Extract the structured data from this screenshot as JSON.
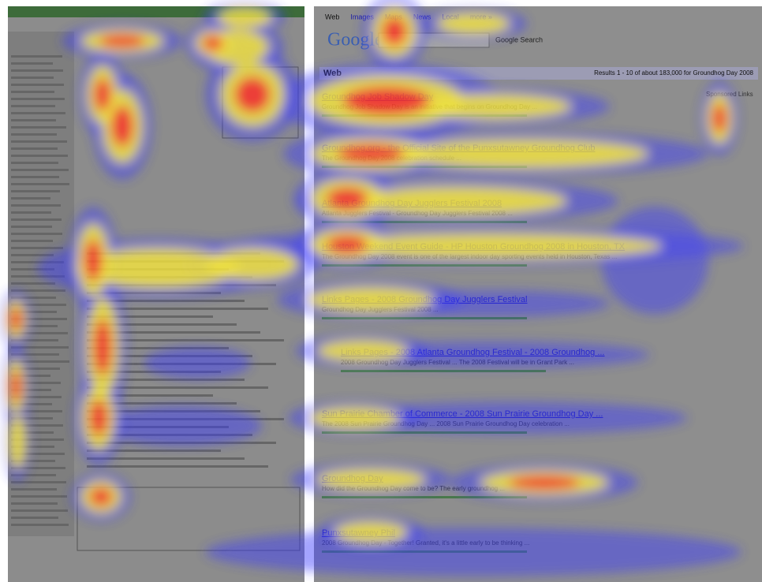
{
  "right_page": {
    "tabs": [
      "Web",
      "Images",
      "Maps",
      "News",
      "Local",
      "more »"
    ],
    "logo": "Google",
    "search_button": "Google Search",
    "results_bar_label": "Web",
    "results_summary": "Results 1 - 10 of about 183,000 for Groundhog Day 2008",
    "sponsored": "Sponsored Links",
    "results": [
      {
        "title": "Groundhog Job Shadow Day",
        "snippet": "Groundhog Job Shadow Day is an initiative that begins on Groundhog Day ..."
      },
      {
        "title": "Groundhog.org - the Official Site of the Punxsutawney Groundhog Club",
        "snippet": "The Groundhog Day 2008 celebration schedule ..."
      },
      {
        "title": "Atlanta Groundhog Day Jugglers Festival 2008",
        "snippet": "Atlanta Jugglers Festival - Groundhog Day Jugglers Festival 2008 ..."
      },
      {
        "title": "Houston Weekend Event Guide - HP Houston Groundhog 2008 in Houston, TX",
        "snippet": "The Groundhog Day 2008 event is one of the largest indoor day sporting events held in Houston, Texas ..."
      },
      {
        "title": "Links Pages - 2008 Groundhog Day Jugglers Festival",
        "snippet": "Groundhog Day Jugglers Festival 2008 ..."
      },
      {
        "title": "Links Pages - 2008 Atlanta Groundhog Festival - 2008 Groundhog ...",
        "snippet": "2008 Groundhog Day Jugglers Festival ... The 2008 Festival will be in Grant Park ..."
      },
      {
        "title": "Sun Prairie Chamber of Commerce - 2008 Sun Prairie Groundhog Day ...",
        "snippet": "The 2008 Sun Prairie Groundhog Day ... 2008 Sun Prairie Groundhog Day celebration ..."
      },
      {
        "title": "Groundhog Day",
        "snippet": "How did the Groundhog Day come to be? The early groundhog ..."
      },
      {
        "title": "Punxsutawney Phil",
        "snippet": "2008 Groundhog Day - Together! Granted, it's a little early to be thinking ..."
      }
    ]
  }
}
